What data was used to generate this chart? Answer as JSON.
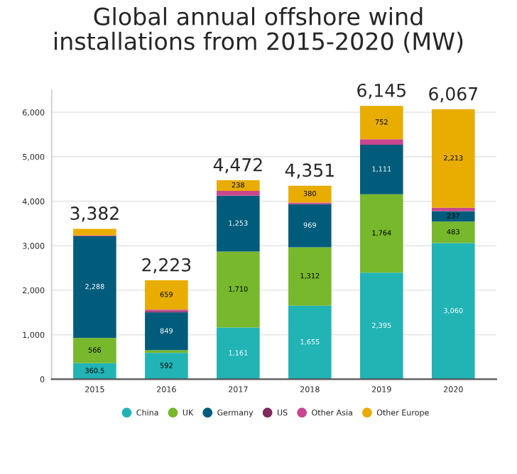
{
  "chart_data": {
    "type": "bar",
    "title": "Global annual offshore wind\ninstallations from 2015-2020 (MW)",
    "stacked": true,
    "categories": [
      "2015",
      "2016",
      "2017",
      "2018",
      "2019",
      "2020"
    ],
    "series": [
      {
        "name": "China",
        "color": "#22b3b5",
        "values": [
          360.5,
          592,
          1161,
          1655,
          2395,
          3060
        ],
        "value_labels": [
          "360.5",
          "592",
          "1,161",
          "1,655",
          "2,395",
          "3,060"
        ]
      },
      {
        "name": "UK",
        "color": "#77b82c",
        "values": [
          566,
          60,
          1710,
          1312,
          1764,
          483
        ],
        "value_labels": [
          "566",
          null,
          "1,710",
          "1,312",
          "1,764",
          "483"
        ]
      },
      {
        "name": "Germany",
        "color": "#005c7a",
        "values": [
          2288,
          849,
          1253,
          969,
          1111,
          237
        ],
        "value_labels": [
          "2,288",
          "849",
          "1,253",
          "969",
          "1,111",
          "237"
        ]
      },
      {
        "name": "US",
        "color": "#7d2a5c",
        "values": [
          0,
          30,
          0,
          0,
          0,
          0
        ],
        "value_labels": [
          null,
          null,
          null,
          null,
          null,
          null
        ]
      },
      {
        "name": "Other Asia",
        "color": "#c8478f",
        "values": [
          17.5,
          33,
          110,
          35,
          123,
          74
        ],
        "value_labels": [
          null,
          null,
          null,
          null,
          null,
          null
        ]
      },
      {
        "name": "Other Europe",
        "color": "#e8ad00",
        "values": [
          150,
          659,
          238,
          380,
          752,
          2213
        ],
        "value_labels": [
          null,
          "659",
          "238",
          "380",
          "752",
          "2,213"
        ]
      }
    ],
    "totals": [
      "3,382",
      "2,223",
      "4,472",
      "4,351",
      "6,145",
      "6,067"
    ],
    "ylim": [
      0,
      6500
    ],
    "yticks": [
      0,
      {
        "value": 1000,
        "label": "1,000"
      },
      {
        "value": 2000,
        "label": "2,000"
      },
      {
        "value": 3000,
        "label": "3,000"
      },
      {
        "value": 4000,
        "label": "4,000"
      },
      {
        "value": 5000,
        "label": "5,000"
      },
      {
        "value": 6000,
        "label": "6,000"
      }
    ],
    "grid": "y",
    "legend": "bottom"
  }
}
